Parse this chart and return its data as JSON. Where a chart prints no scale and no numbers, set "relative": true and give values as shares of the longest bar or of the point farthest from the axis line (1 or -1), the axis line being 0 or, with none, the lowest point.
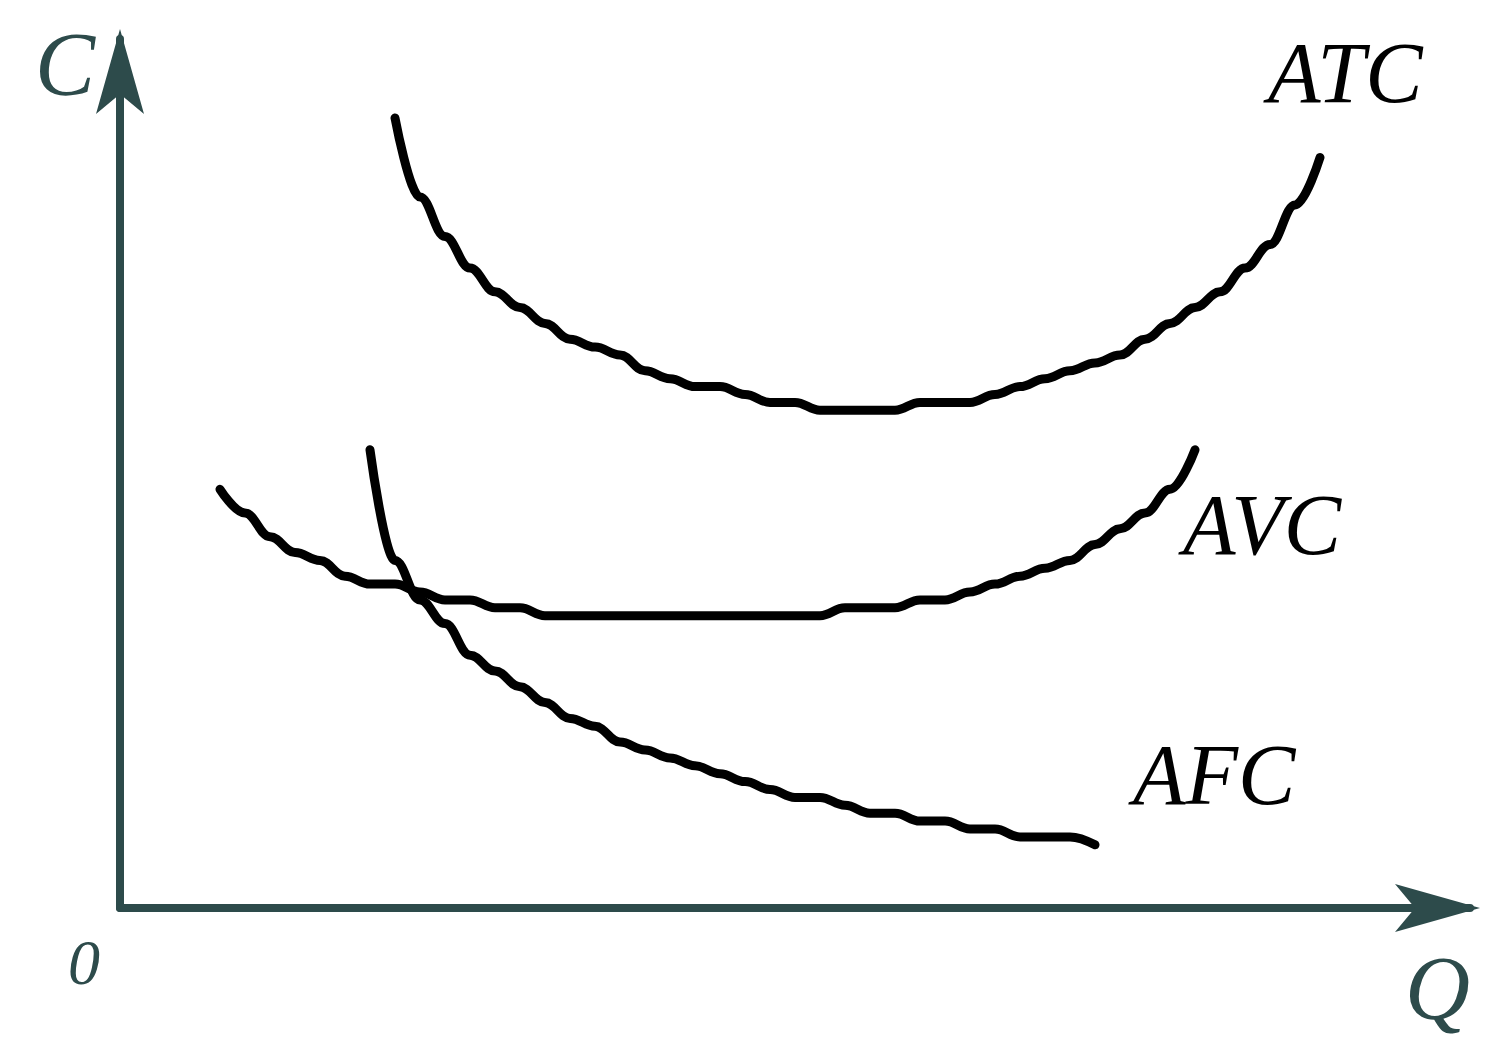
{
  "chart_data": {
    "type": "line",
    "relative": true,
    "xlabel": "Q",
    "ylabel": "C",
    "annotations": [
      "0"
    ],
    "marker": "none",
    "line_style": "solid",
    "grid": false,
    "legend": false,
    "categories": [
      null,
      null,
      null,
      null,
      null,
      null,
      null,
      null,
      null,
      null,
      null,
      null,
      null,
      null,
      null,
      null,
      null,
      null,
      null,
      null,
      null,
      null,
      null,
      null,
      null,
      null,
      null,
      null,
      null,
      null,
      null,
      null,
      null,
      null,
      null,
      null,
      null,
      null,
      null,
      null,
      null,
      null,
      null,
      null,
      null,
      null,
      null,
      null,
      null,
      null,
      null,
      null,
      null,
      null,
      null
    ],
    "series": [
      {
        "name": "ATC",
        "color": "#000000",
        "values": [
          null,
          null,
          null,
          null,
          null,
          null,
          null,
          null,
          null,
          null,
          null,
          1.0,
          0.9,
          0.85,
          0.81,
          0.78,
          0.76,
          0.74,
          0.72,
          0.71,
          0.7,
          0.68,
          0.67,
          0.66,
          0.66,
          0.65,
          0.64,
          0.64,
          0.63,
          0.63,
          0.63,
          0.63,
          0.64,
          0.64,
          0.64,
          0.65,
          0.66,
          0.67,
          0.68,
          0.69,
          0.7,
          0.72,
          0.74,
          0.76,
          0.78,
          0.81,
          0.84,
          0.89,
          0.95,
          null,
          null,
          null,
          null,
          null,
          null
        ]
      },
      {
        "name": "AVC",
        "color": "#000000",
        "values": [
          null,
          null,
          null,
          null,
          0.53,
          0.5,
          0.47,
          0.45,
          0.44,
          0.42,
          0.41,
          0.41,
          0.4,
          0.39,
          0.39,
          0.38,
          0.38,
          0.37,
          0.37,
          0.37,
          0.37,
          0.37,
          0.37,
          0.37,
          0.37,
          0.37,
          0.37,
          0.37,
          0.37,
          0.38,
          0.38,
          0.38,
          0.39,
          0.39,
          0.4,
          0.41,
          0.42,
          0.43,
          0.44,
          0.46,
          0.48,
          0.5,
          0.53,
          0.58,
          null,
          null,
          null,
          null,
          null,
          null,
          null,
          null,
          null,
          null,
          null
        ]
      },
      {
        "name": "AFC",
        "color": "#000000",
        "values": [
          null,
          null,
          null,
          null,
          null,
          null,
          null,
          null,
          null,
          null,
          0.58,
          0.44,
          0.39,
          0.36,
          0.32,
          0.3,
          0.28,
          0.26,
          0.24,
          0.23,
          0.21,
          0.2,
          0.19,
          0.18,
          0.17,
          0.16,
          0.15,
          0.14,
          0.14,
          0.13,
          0.12,
          0.12,
          0.11,
          0.11,
          0.1,
          0.1,
          0.09,
          0.09,
          0.09,
          0.08,
          null,
          null,
          null,
          null,
          null,
          null,
          null,
          null,
          null,
          null,
          null,
          null,
          null,
          null,
          null
        ]
      }
    ]
  }
}
